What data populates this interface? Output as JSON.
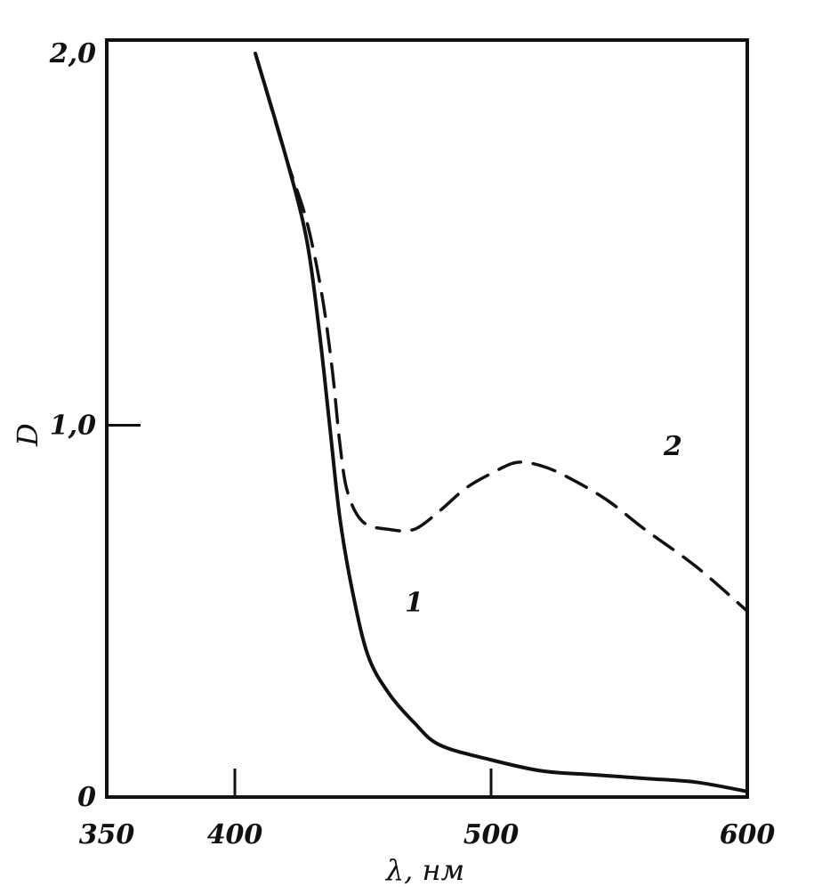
{
  "chart_data": {
    "type": "line",
    "xlabel": "λ, нм",
    "ylabel": "D",
    "xlim": [
      350,
      600
    ],
    "ylim": [
      0,
      2.0
    ],
    "x_ticks": [
      {
        "value": 350,
        "label": "350"
      },
      {
        "value": 400,
        "label": "400"
      },
      {
        "value": 500,
        "label": "500"
      },
      {
        "value": 600,
        "label": "600"
      }
    ],
    "y_ticks": [
      {
        "value": 0,
        "label": "0"
      },
      {
        "value": 1.0,
        "label": "1,0"
      },
      {
        "value": 2.0,
        "label": "2,0"
      }
    ],
    "series": [
      {
        "name": "1",
        "style": "solid",
        "color": "#111111",
        "points": [
          [
            408,
            2.0
          ],
          [
            420,
            1.72
          ],
          [
            428,
            1.5
          ],
          [
            433,
            1.25
          ],
          [
            437,
            1.0
          ],
          [
            441,
            0.75
          ],
          [
            446,
            0.55
          ],
          [
            452,
            0.38
          ],
          [
            460,
            0.28
          ],
          [
            470,
            0.2
          ],
          [
            480,
            0.14
          ],
          [
            500,
            0.1
          ],
          [
            520,
            0.07
          ],
          [
            540,
            0.06
          ],
          [
            560,
            0.05
          ],
          [
            580,
            0.04
          ],
          [
            600,
            0.015
          ]
        ]
      },
      {
        "name": "2",
        "style": "dashed",
        "color": "#111111",
        "points": [
          [
            408,
            2.0
          ],
          [
            420,
            1.72
          ],
          [
            428,
            1.55
          ],
          [
            434,
            1.35
          ],
          [
            438,
            1.15
          ],
          [
            441,
            0.95
          ],
          [
            444,
            0.82
          ],
          [
            450,
            0.74
          ],
          [
            460,
            0.72
          ],
          [
            470,
            0.72
          ],
          [
            480,
            0.77
          ],
          [
            490,
            0.83
          ],
          [
            500,
            0.87
          ],
          [
            510,
            0.9
          ],
          [
            520,
            0.89
          ],
          [
            530,
            0.86
          ],
          [
            545,
            0.8
          ],
          [
            560,
            0.72
          ],
          [
            580,
            0.62
          ],
          [
            600,
            0.5
          ]
        ]
      }
    ],
    "annotations": [
      {
        "text": "1",
        "x": 470,
        "y": 0.5
      },
      {
        "text": "2",
        "x": 571,
        "y": 0.92
      }
    ]
  }
}
